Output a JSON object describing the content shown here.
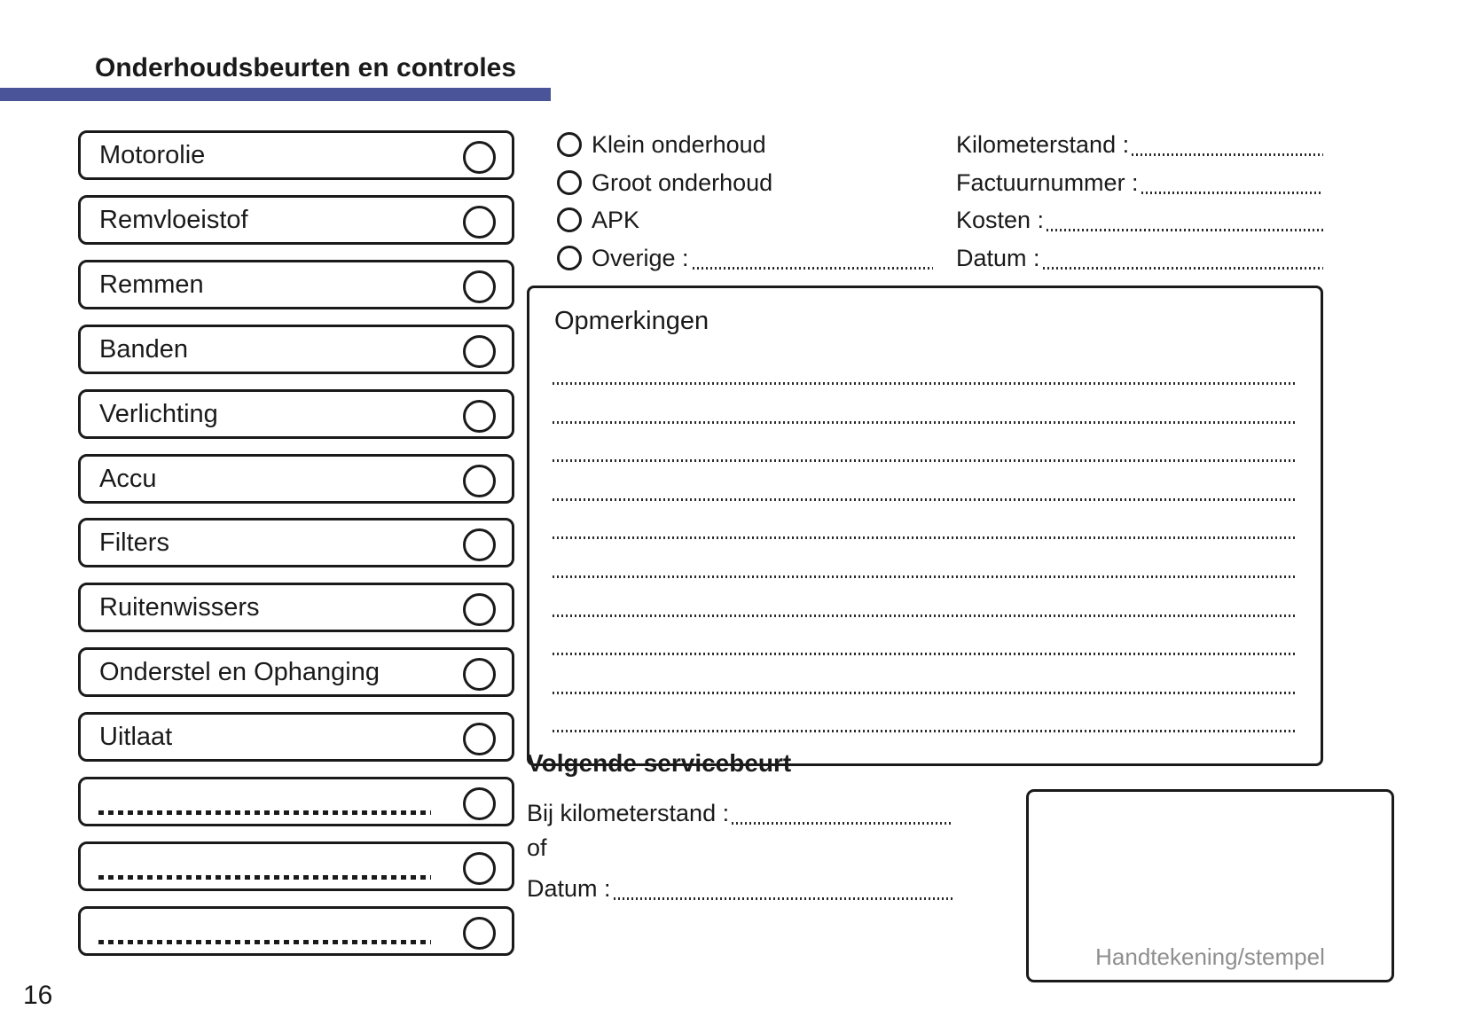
{
  "header": {
    "title": "Onderhoudsbeurten en controles",
    "page_number": "16",
    "accent_color": "#4a5499"
  },
  "checklist": {
    "items": [
      {
        "label": "Motorolie",
        "blank": false
      },
      {
        "label": "Remvloeistof",
        "blank": false
      },
      {
        "label": "Remmen",
        "blank": false
      },
      {
        "label": "Banden",
        "blank": false
      },
      {
        "label": "Verlichting",
        "blank": false
      },
      {
        "label": "Accu",
        "blank": false
      },
      {
        "label": "Filters",
        "blank": false
      },
      {
        "label": "Ruitenwissers",
        "blank": false
      },
      {
        "label": "Onderstel en Ophanging",
        "blank": false
      },
      {
        "label": "Uitlaat",
        "blank": false
      },
      {
        "label": "",
        "blank": true
      },
      {
        "label": "",
        "blank": true
      },
      {
        "label": "",
        "blank": true
      }
    ]
  },
  "service_type": {
    "options": [
      {
        "label": "Klein onderhoud",
        "has_line": false
      },
      {
        "label": "Groot onderhoud",
        "has_line": false
      },
      {
        "label": "APK",
        "has_line": false
      },
      {
        "label": "Overige :",
        "has_line": true
      }
    ]
  },
  "invoice_fields": [
    {
      "label": "Kilometerstand :"
    },
    {
      "label": "Factuurnummer :"
    },
    {
      "label": "Kosten :"
    },
    {
      "label": "Datum :"
    }
  ],
  "remarks": {
    "title": "Opmerkingen",
    "line_count": 10
  },
  "next_service": {
    "title": "Volgende servicebeurt",
    "km_label": "Bij kilometerstand :",
    "or_label": "of",
    "date_label": "Datum :"
  },
  "signature": {
    "label": "Handtekening/stempel"
  }
}
